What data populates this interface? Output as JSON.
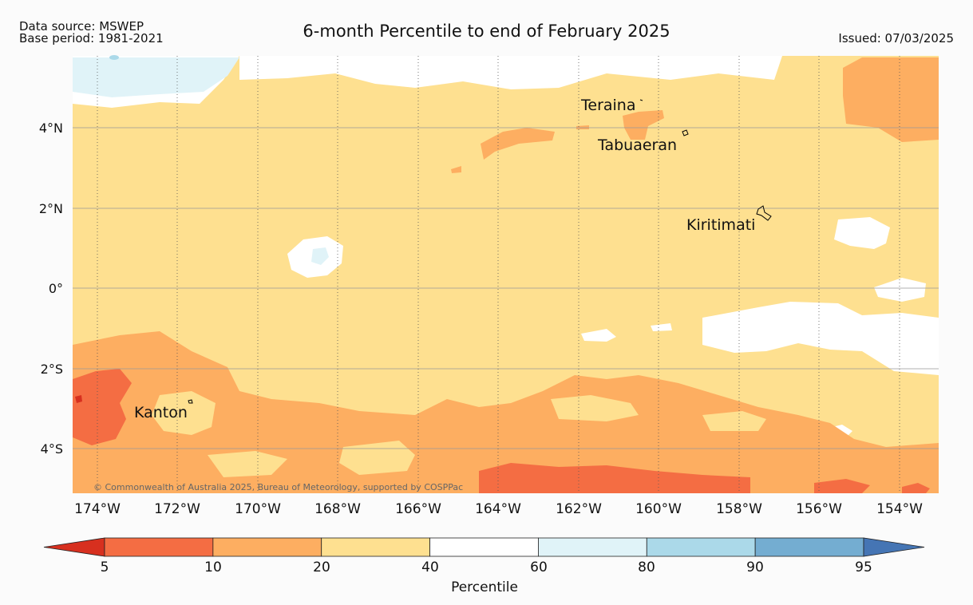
{
  "header": {
    "data_source": "Data source: MSWEP",
    "base_period": "Base period: 1981-2021",
    "title": "6-month Percentile to end of February 2025",
    "issued": "Issued: 07/03/2025"
  },
  "map": {
    "latitude_labels": [
      "4°N",
      "2°N",
      "0°",
      "2°S",
      "4°S"
    ],
    "longitude_labels": [
      "174°W",
      "172°W",
      "170°W",
      "168°W",
      "166°W",
      "164°W",
      "162°W",
      "160°W",
      "158°W",
      "156°W",
      "154°W"
    ],
    "places": [
      "Teraina",
      "Tabuaeran",
      "Kiritimati",
      "Kanton"
    ],
    "copyright": "© Commonwealth of Australia 2025, Bureau of Meteorology, supported by COSPPac",
    "background_category": "20-40",
    "colors": {
      "below_5": "#d7301f",
      "p5_10": "#f46d43",
      "p10_20": "#fdae61",
      "p20_40": "#fee090",
      "p40_60": "#ffffff",
      "p60_80": "#e0f3f8",
      "p80_90": "#abd9e9",
      "p90_95": "#74add1",
      "above_95": "#4575b4"
    }
  },
  "legend": {
    "ticks": [
      "5",
      "10",
      "20",
      "40",
      "60",
      "80",
      "90",
      "95"
    ],
    "label": "Percentile",
    "bins": [
      "#f46d43",
      "#fdae61",
      "#fee090",
      "#ffffff",
      "#e0f3f8",
      "#abd9e9",
      "#74add1"
    ],
    "low_extend": "#d7301f",
    "high_extend": "#4575b4"
  }
}
